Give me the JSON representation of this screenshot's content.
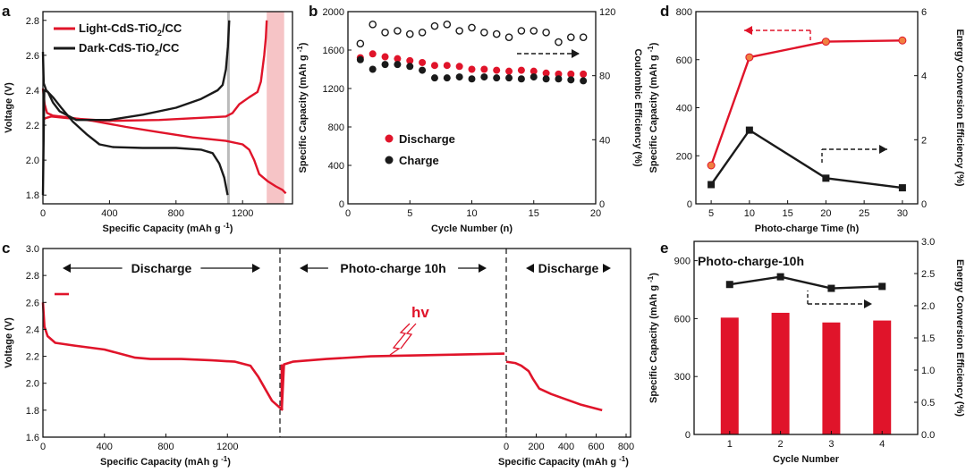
{
  "chart_data": [
    {
      "id": "a",
      "panel_label": "a",
      "type": "line",
      "xlabel": "Specific Capacity (mAh g",
      "xlabel_sup": "-1",
      "xlabel_end": ")",
      "ylabel": "Voltage (V)",
      "xlim": [
        0,
        1500
      ],
      "ylim": [
        1.75,
        2.85
      ],
      "xticks": [
        0,
        400,
        800,
        1200
      ],
      "yticks": [
        1.8,
        2.0,
        2.2,
        2.4,
        2.6,
        2.8
      ],
      "legend": [
        {
          "text": "Light-CdS-TiO",
          "sub": "2",
          "tail": "/CC",
          "color": "#e0142a"
        },
        {
          "text": "Dark-CdS-TiO",
          "sub": "2",
          "tail": "/CC",
          "color": "#1a1a1a"
        }
      ],
      "shade_range": [
        1345,
        1450
      ],
      "vline_x": 1115,
      "series": [
        {
          "name": "Light discharge",
          "color": "#e0142a",
          "points": [
            [
              0,
              2.41
            ],
            [
              10,
              2.32
            ],
            [
              25,
              2.27
            ],
            [
              60,
              2.255
            ],
            [
              150,
              2.245
            ],
            [
              300,
              2.225
            ],
            [
              500,
              2.19
            ],
            [
              700,
              2.16
            ],
            [
              900,
              2.13
            ],
            [
              1100,
              2.11
            ],
            [
              1200,
              2.09
            ],
            [
              1240,
              2.06
            ],
            [
              1270,
              2.0
            ],
            [
              1300,
              1.92
            ],
            [
              1350,
              1.88
            ],
            [
              1400,
              1.85
            ],
            [
              1440,
              1.83
            ],
            [
              1460,
              1.81
            ]
          ]
        },
        {
          "name": "Light charge",
          "color": "#e0142a",
          "points": [
            [
              0,
              2.23
            ],
            [
              15,
              2.24
            ],
            [
              50,
              2.25
            ],
            [
              150,
              2.24
            ],
            [
              400,
              2.225
            ],
            [
              700,
              2.23
            ],
            [
              1000,
              2.245
            ],
            [
              1100,
              2.25
            ],
            [
              1140,
              2.27
            ],
            [
              1180,
              2.32
            ],
            [
              1240,
              2.36
            ],
            [
              1290,
              2.39
            ],
            [
              1310,
              2.45
            ],
            [
              1330,
              2.6
            ],
            [
              1340,
              2.7
            ],
            [
              1345,
              2.8
            ]
          ]
        },
        {
          "name": "Dark discharge",
          "color": "#1a1a1a",
          "points": [
            [
              0,
              2.62
            ],
            [
              5,
              2.44
            ],
            [
              20,
              2.4
            ],
            [
              60,
              2.36
            ],
            [
              110,
              2.3
            ],
            [
              180,
              2.22
            ],
            [
              260,
              2.15
            ],
            [
              340,
              2.09
            ],
            [
              420,
              2.075
            ],
            [
              600,
              2.07
            ],
            [
              800,
              2.07
            ],
            [
              950,
              2.06
            ],
            [
              1020,
              2.04
            ],
            [
              1060,
              1.98
            ],
            [
              1090,
              1.9
            ],
            [
              1110,
              1.8
            ]
          ]
        },
        {
          "name": "Dark charge",
          "color": "#1a1a1a",
          "points": [
            [
              0,
              1.8
            ],
            [
              8,
              2.4
            ],
            [
              30,
              2.39
            ],
            [
              60,
              2.33
            ],
            [
              100,
              2.28
            ],
            [
              200,
              2.23
            ],
            [
              400,
              2.23
            ],
            [
              600,
              2.26
            ],
            [
              800,
              2.3
            ],
            [
              950,
              2.35
            ],
            [
              1050,
              2.4
            ],
            [
              1080,
              2.43
            ],
            [
              1100,
              2.52
            ],
            [
              1112,
              2.65
            ],
            [
              1120,
              2.8
            ]
          ]
        }
      ]
    },
    {
      "id": "b",
      "panel_label": "b",
      "type": "scatter",
      "xlabel": "Cycle Number (n)",
      "ylabel": "Specific Capacity (mAh g",
      "ylabel_sup": "-1",
      "ylabel_end": ")",
      "y2label": "Coulombic Efficiency (%)",
      "xlim": [
        0,
        20
      ],
      "ylim": [
        0,
        2000
      ],
      "y2lim": [
        0,
        120
      ],
      "xticks": [
        0,
        5,
        10,
        15,
        20
      ],
      "yticks": [
        0,
        400,
        800,
        1200,
        1600,
        2000
      ],
      "y2ticks": [
        0,
        40,
        80,
        120
      ],
      "legend": [
        {
          "text": "Discharge",
          "color": "#e0142a"
        },
        {
          "text": "Charge",
          "color": "#1a1a1a"
        }
      ],
      "x": [
        1,
        2,
        3,
        4,
        5,
        6,
        7,
        8,
        9,
        10,
        11,
        12,
        13,
        14,
        15,
        16,
        17,
        18,
        19
      ],
      "series": [
        {
          "name": "Discharge",
          "color": "#e0142a",
          "axis": "left",
          "marker": "filled",
          "values": [
            1520,
            1560,
            1530,
            1510,
            1490,
            1470,
            1440,
            1440,
            1430,
            1400,
            1400,
            1390,
            1380,
            1390,
            1380,
            1360,
            1350,
            1350,
            1350
          ]
        },
        {
          "name": "Charge",
          "color": "#1a1a1a",
          "axis": "left",
          "marker": "filled",
          "values": [
            1500,
            1400,
            1450,
            1450,
            1430,
            1390,
            1310,
            1310,
            1320,
            1300,
            1320,
            1310,
            1310,
            1300,
            1320,
            1300,
            1300,
            1290,
            1280
          ]
        },
        {
          "name": "Coulombic Efficiency",
          "color": "#1a1a1a",
          "axis": "right",
          "marker": "open",
          "values": [
            100,
            112,
            107,
            108,
            106,
            107,
            111,
            112,
            108,
            110,
            107,
            106,
            104,
            108,
            108,
            107,
            101,
            104,
            104
          ]
        }
      ]
    },
    {
      "id": "c",
      "panel_label": "c",
      "type": "line",
      "xlabel": "Specific Capacity (mAh g",
      "xlabel_sup": "-1",
      "xlabel_end": ")",
      "ylabel": "Voltage (V)",
      "ylim": [
        1.6,
        3.0
      ],
      "yticks": [
        1.6,
        1.8,
        2.0,
        2.2,
        2.4,
        2.6,
        2.8,
        3.0
      ],
      "segment1": {
        "xlim": [
          0,
          1600
        ],
        "xticks": [
          0,
          400,
          800,
          1200
        ]
      },
      "segment3": {
        "xlim": [
          0,
          800
        ],
        "xticks": [
          0,
          200,
          400,
          600,
          800
        ]
      },
      "regions": [
        "Discharge",
        "Photo-charge 10h",
        "Discharge"
      ],
      "annotation": "hv",
      "series": [
        {
          "name": "Discharge 1",
          "color": "#e0142a",
          "points": [
            [
              0,
              2.6
            ],
            [
              10,
              2.42
            ],
            [
              30,
              2.35
            ],
            [
              80,
              2.3
            ],
            [
              200,
              2.28
            ],
            [
              400,
              2.25
            ],
            [
              600,
              2.19
            ],
            [
              700,
              2.18
            ],
            [
              900,
              2.18
            ],
            [
              1100,
              2.17
            ],
            [
              1250,
              2.16
            ],
            [
              1350,
              2.13
            ],
            [
              1400,
              2.05
            ],
            [
              1450,
              1.95
            ],
            [
              1490,
              1.87
            ],
            [
              1560,
              1.8
            ]
          ]
        },
        {
          "name": "Photo-charge",
          "color": "#e0142a",
          "points": [
            [
              0,
              1.8
            ],
            [
              0.01,
              2.14
            ],
            [
              0.05,
              2.16
            ],
            [
              0.2,
              2.18
            ],
            [
              0.4,
              2.2
            ],
            [
              0.7,
              2.21
            ],
            [
              1.0,
              2.22
            ]
          ]
        },
        {
          "name": "Discharge 2",
          "color": "#e0142a",
          "points": [
            [
              0,
              2.16
            ],
            [
              60,
              2.15
            ],
            [
              100,
              2.13
            ],
            [
              150,
              2.09
            ],
            [
              180,
              2.03
            ],
            [
              220,
              1.96
            ],
            [
              300,
              1.92
            ],
            [
              400,
              1.88
            ],
            [
              500,
              1.84
            ],
            [
              640,
              1.8
            ]
          ]
        }
      ]
    },
    {
      "id": "d",
      "panel_label": "d",
      "type": "line",
      "xlabel": "Photo-charge Time (h)",
      "ylabel": "Specific Capacity (mAh g",
      "ylabel_sup": "-1",
      "ylabel_end": ")",
      "y2label": "Energy Conversion Efficiency (%)",
      "xlim": [
        3,
        32
      ],
      "ylim": [
        0,
        800
      ],
      "y2lim": [
        0,
        6
      ],
      "xticks": [
        5,
        10,
        15,
        20,
        25,
        30
      ],
      "yticks": [
        0,
        200,
        400,
        600,
        800
      ],
      "y2ticks": [
        0,
        2,
        4,
        6
      ],
      "x": [
        5,
        10,
        20,
        30
      ],
      "series": [
        {
          "name": "Specific Capacity",
          "color": "#e0142a",
          "axis": "left",
          "values": [
            160,
            610,
            675,
            680
          ]
        },
        {
          "name": "Energy Conversion Efficiency",
          "color": "#1a1a1a",
          "axis": "right",
          "values": [
            0.6,
            2.3,
            0.8,
            0.5
          ]
        }
      ]
    },
    {
      "id": "e",
      "panel_label": "e",
      "type": "bar",
      "title": "Photo-charge-10h",
      "xlabel": "Cycle Number",
      "ylabel": "Specific Capacity (mAh g",
      "ylabel_sup": "-1",
      "ylabel_end": ")",
      "y2label": "Energy Conversion Efficiency (%)",
      "categories": [
        "1",
        "2",
        "3",
        "4"
      ],
      "ylim": [
        0,
        1000
      ],
      "y2lim": [
        0,
        3.0
      ],
      "yticks": [
        0,
        300,
        600,
        900
      ],
      "y2ticks": [
        0,
        0.5,
        1.0,
        1.5,
        2.0,
        2.5,
        3.0
      ],
      "series": [
        {
          "name": "Specific Capacity",
          "color": "#e0142a",
          "axis": "left",
          "type": "bar",
          "values": [
            605,
            630,
            580,
            590
          ]
        },
        {
          "name": "Energy Conversion Efficiency",
          "color": "#1a1a1a",
          "axis": "right",
          "type": "line",
          "values": [
            2.33,
            2.45,
            2.27,
            2.3
          ]
        }
      ]
    }
  ]
}
